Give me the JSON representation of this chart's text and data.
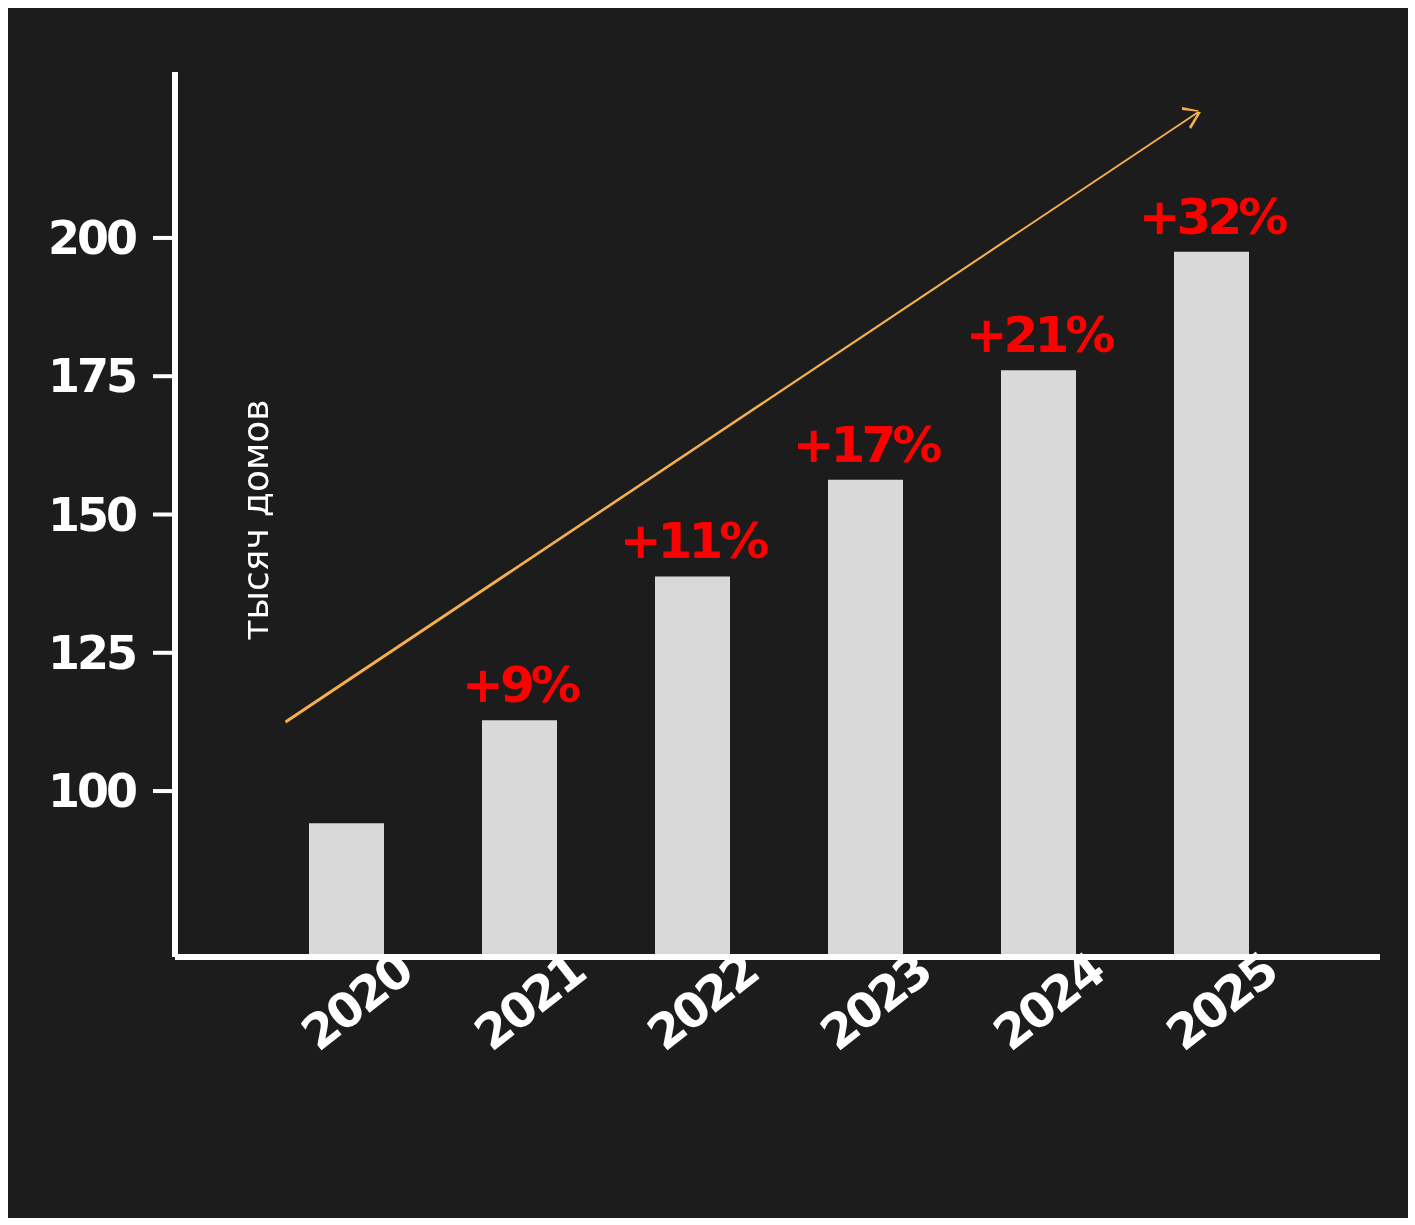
{
  "chart_data": {
    "type": "bar",
    "ylabel": "тысяч домов",
    "categories": [
      "2020",
      "2021",
      "2022",
      "2023",
      "2024",
      "2025"
    ],
    "values": [
      94.2,
      112.8,
      138.8,
      156.3,
      176.1,
      197.5
    ],
    "color": "#d9d9d9",
    "annotations": [
      {
        "text": "+9%",
        "x": "2021",
        "y": 112.8
      },
      {
        "text": "+11%",
        "x": "2022",
        "y": 138.8
      },
      {
        "text": "+17%",
        "x": "2023",
        "y": 156.3
      },
      {
        "text": "+21%",
        "x": "2024",
        "y": 176.1
      },
      {
        "text": "+32%",
        "x": "2025",
        "y": 197.5
      }
    ],
    "ylim": [
      70,
      230
    ],
    "yticks": [
      100,
      125,
      150,
      175,
      200
    ]
  }
}
